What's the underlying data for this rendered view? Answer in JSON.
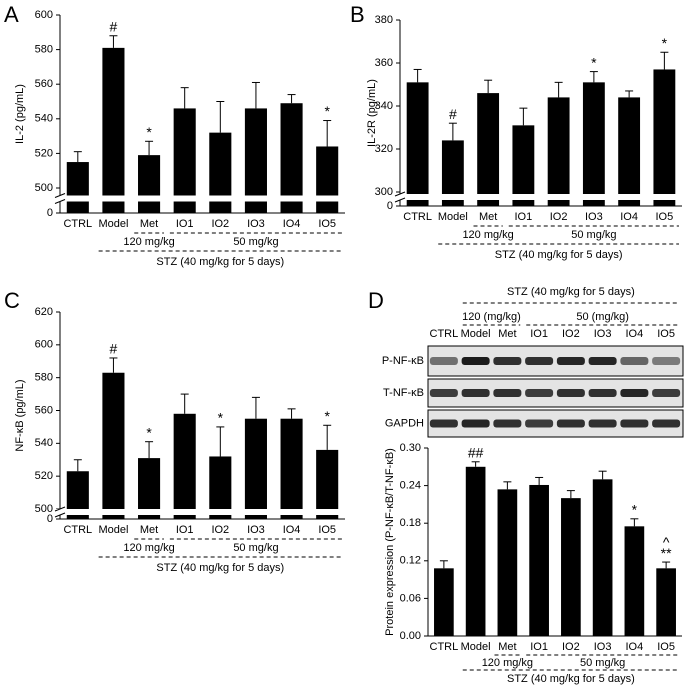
{
  "chart_data": [
    {
      "type": "bar",
      "panel": "A",
      "ylabel": "IL-2 (pg/mL)",
      "color": "#000000",
      "categories": [
        "CTRL",
        "Model",
        "Met",
        "IO1",
        "IO2",
        "IO3",
        "IO4",
        "IO5"
      ],
      "values": [
        515,
        581,
        519,
        546,
        532,
        546,
        549,
        524
      ],
      "errors": [
        6,
        7,
        8,
        12,
        18,
        15,
        5,
        15
      ],
      "significance": [
        null,
        [
          "#"
        ],
        [
          "*"
        ],
        null,
        null,
        null,
        null,
        [
          "*"
        ]
      ],
      "ylim": [
        0,
        600
      ],
      "axis_break": [
        0,
        500
      ],
      "yticks": [
        0,
        500,
        520,
        540,
        560,
        580,
        600
      ],
      "dose_labels": [
        "120 mg/kg",
        "50 mg/kg"
      ],
      "treatment": "STZ (40 mg/kg for 5 days)"
    },
    {
      "type": "bar",
      "panel": "B",
      "ylabel": "IL-2R (pg/mL)",
      "color": "#000000",
      "categories": [
        "CTRL",
        "Model",
        "Met",
        "IO1",
        "IO2",
        "IO3",
        "IO4",
        "IO5"
      ],
      "values": [
        351,
        324,
        346,
        331,
        344,
        351,
        344,
        357
      ],
      "errors": [
        6,
        8,
        6,
        8,
        7,
        5,
        3,
        8
      ],
      "significance": [
        null,
        [
          "#"
        ],
        null,
        null,
        null,
        [
          "*"
        ],
        null,
        [
          "*"
        ]
      ],
      "ylim": [
        0,
        380
      ],
      "axis_break": [
        0,
        300
      ],
      "yticks": [
        0,
        300,
        320,
        340,
        360,
        380
      ],
      "dose_labels": [
        "120 mg/kg",
        "50 mg/kg"
      ],
      "treatment": "STZ (40 mg/kg for 5 days)"
    },
    {
      "type": "bar",
      "panel": "C",
      "ylabel": "NF-κB (pg/mL)",
      "color": "#000000",
      "categories": [
        "CTRL",
        "Model",
        "Met",
        "IO1",
        "IO2",
        "IO3",
        "IO4",
        "IO5"
      ],
      "values": [
        523,
        583,
        531,
        558,
        532,
        555,
        555,
        536
      ],
      "errors": [
        7,
        9,
        10,
        12,
        18,
        13,
        6,
        15
      ],
      "significance": [
        null,
        [
          "#"
        ],
        [
          "*"
        ],
        null,
        [
          "*"
        ],
        null,
        null,
        [
          "*"
        ]
      ],
      "ylim": [
        0,
        620
      ],
      "axis_break": [
        0,
        500
      ],
      "yticks": [
        0,
        500,
        520,
        540,
        560,
        580,
        600,
        620
      ],
      "dose_labels": [
        "120 mg/kg",
        "50 mg/kg"
      ],
      "treatment": "STZ (40 mg/kg for 5 days)"
    },
    {
      "type": "bar",
      "panel": "D",
      "ylabel": "Protein expression (P-NF-κB/T-NF-κB)",
      "color": "#000000",
      "categories": [
        "CTRL",
        "Model",
        "Met",
        "IO1",
        "IO2",
        "IO3",
        "IO4",
        "IO5"
      ],
      "values": [
        0.108,
        0.27,
        0.234,
        0.241,
        0.22,
        0.25,
        0.175,
        0.108
      ],
      "errors": [
        0.012,
        0.008,
        0.012,
        0.012,
        0.012,
        0.013,
        0.012,
        0.01
      ],
      "significance": [
        null,
        [
          "##"
        ],
        null,
        null,
        null,
        null,
        [
          "*"
        ],
        [
          "**",
          "^"
        ]
      ],
      "ylim": [
        0,
        0.3
      ],
      "yticks": [
        {
          "value": 0,
          "label": "0.00"
        },
        {
          "value": 0.06,
          "label": "0.06"
        },
        {
          "value": 0.12,
          "label": "0.12"
        },
        {
          "value": 0.18,
          "label": "0.18"
        },
        {
          "value": 0.24,
          "label": "0.24"
        },
        {
          "value": 0.3,
          "label": "0.30"
        }
      ],
      "dose_labels": [
        "120 mg/kg",
        "50 mg/kg"
      ],
      "treatment": "STZ (40 mg/kg for 5 days)",
      "blot": {
        "treatment": "STZ (40 mg/kg for 5 days)",
        "doses": [
          "120 (mg/kg)",
          "50 (mg/kg)"
        ],
        "lanes": [
          "CTRL",
          "Model",
          "Met",
          "IO1",
          "IO2",
          "IO3",
          "IO4",
          "IO5"
        ],
        "rows": [
          "P-NF-κB",
          "T-NF-κB",
          "GAPDH"
        ]
      }
    }
  ]
}
